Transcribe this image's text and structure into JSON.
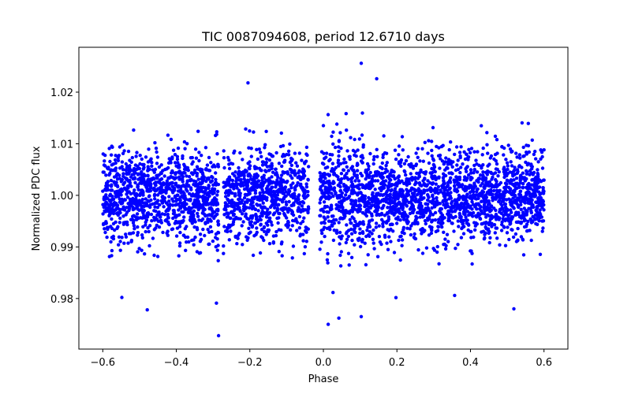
{
  "chart_data": {
    "type": "scatter",
    "title": "TIC 0087094608, period 12.6710 days",
    "xlabel": "Phase",
    "ylabel": "Normalized PDC flux",
    "xlim": [
      -0.665,
      0.665
    ],
    "ylim": [
      0.9702,
      1.0287
    ],
    "x_ticks": [
      -0.6,
      -0.4,
      -0.2,
      0.0,
      0.2,
      0.4,
      0.6
    ],
    "x_tick_labels": [
      "−0.6",
      "−0.4",
      "−0.2",
      "0.0",
      "0.2",
      "0.4",
      "0.6"
    ],
    "y_ticks": [
      0.98,
      0.99,
      1.0,
      1.01,
      1.02
    ],
    "y_tick_labels": [
      "0.98",
      "0.99",
      "1.00",
      "1.01",
      "1.02"
    ],
    "grid": false,
    "series": [
      {
        "name": "flux",
        "color": "#0000ff",
        "marker": "circle",
        "phase_range": [
          -0.6,
          0.6
        ],
        "n_points": 4000,
        "flux_center": 1.0,
        "flux_sigma": 0.0045,
        "gaps": [
          [
            -0.285,
            -0.272
          ],
          [
            -0.04,
            -0.01
          ]
        ],
        "sample_points": [
          [
            -0.285,
            0.9728
          ],
          [
            0.103,
            1.0256
          ],
          [
            0.145,
            1.0226
          ],
          [
            -0.205,
            1.0218
          ],
          [
            0.013,
            0.975
          ],
          [
            0.042,
            0.9762
          ],
          [
            0.103,
            0.9765
          ],
          [
            -0.479,
            0.9778
          ],
          [
            0.518,
            0.978
          ],
          [
            -0.548,
            0.9802
          ],
          [
            0.357,
            0.9806
          ]
        ]
      }
    ]
  }
}
